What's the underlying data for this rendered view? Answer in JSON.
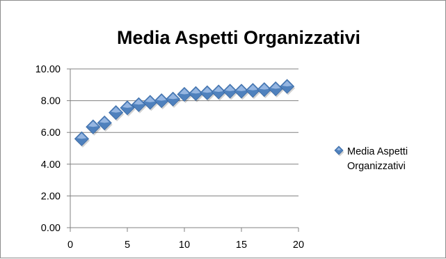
{
  "chart_data": {
    "type": "scatter",
    "title": "Media Aspetti Organizzativi",
    "xlabel": "",
    "ylabel": "",
    "xlim": [
      0,
      20
    ],
    "ylim": [
      0,
      10
    ],
    "xticks": [
      "0",
      "5",
      "10",
      "15",
      "20"
    ],
    "yticks": [
      "0.00",
      "2.00",
      "4.00",
      "6.00",
      "8.00",
      "10.00"
    ],
    "grid": "horizontal",
    "legend": "right",
    "marker": "diamond",
    "colors": {
      "marker": "#4f81bd",
      "marker_highlight": "#a7c3ea",
      "grid": "#808080"
    },
    "series": [
      {
        "name": "Media Aspetti Organizzativi",
        "x": [
          1,
          2,
          3,
          4,
          5,
          6,
          7,
          8,
          9,
          10,
          11,
          12,
          13,
          14,
          15,
          16,
          17,
          18,
          19
        ],
        "y": [
          5.6,
          6.35,
          6.6,
          7.25,
          7.55,
          7.75,
          7.9,
          8.0,
          8.1,
          8.4,
          8.45,
          8.5,
          8.55,
          8.6,
          8.6,
          8.65,
          8.7,
          8.75,
          8.9
        ]
      }
    ]
  }
}
